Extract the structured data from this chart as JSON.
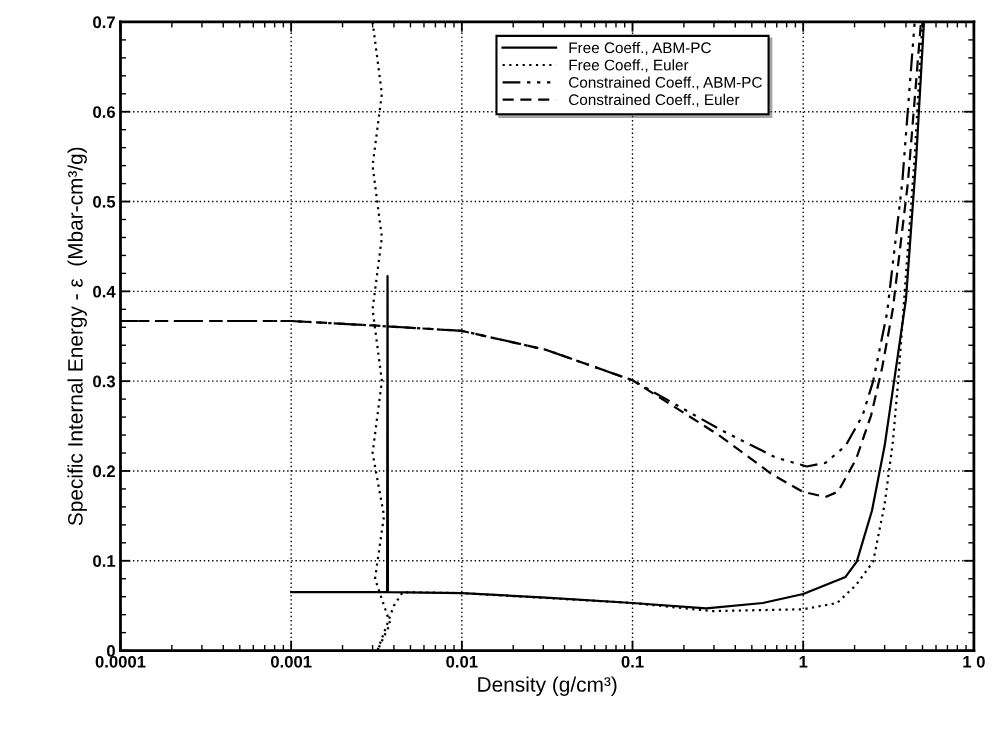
{
  "chart_data": {
    "type": "line",
    "xlabel": "Density (g/cm³)",
    "ylabel": "Specific Internal Energy - ε  (Mbar-cm³/g)",
    "log": "x",
    "xlim": [
      0.0001,
      10
    ],
    "ylim": [
      0,
      0.7
    ],
    "xticks": [
      0.0001,
      0.001,
      0.01,
      0.1,
      1,
      {
        "value": 10,
        "label": "1 0"
      }
    ],
    "yticks": [
      0,
      0.1,
      0.2,
      0.3,
      0.4,
      0.5,
      0.6,
      0.7
    ],
    "grid": true,
    "legend": "top",
    "marker": "none",
    "series": [
      {
        "name": "Free Coeff., ABM-PC",
        "color": "#000000",
        "line_style": "solid",
        "x": [
          0.001,
          0.0036,
          0.00365,
          0.00367,
          0.00369,
          0.01,
          0.031,
          0.1,
          0.27,
          0.58,
          1.0,
          1.77,
          2.06,
          2.53,
          3.0,
          3.5,
          4.0,
          4.6,
          5.1
        ],
        "values": [
          0.065,
          0.065,
          0.065,
          0.417,
          0.065,
          0.064,
          0.059,
          0.053,
          0.047,
          0.053,
          0.063,
          0.082,
          0.099,
          0.156,
          0.228,
          0.315,
          0.391,
          0.55,
          0.7
        ]
      },
      {
        "name": "Free Coeff., Euler",
        "color": "#000000",
        "line_style": "dotted",
        "x": [
          0.003,
          0.0034,
          0.003,
          0.0034,
          0.003,
          0.0034,
          0.003,
          0.0035,
          0.0031,
          0.0038,
          0.0032,
          0.004,
          0.0045,
          0.01,
          0.1,
          0.29,
          1.0,
          1.58,
          2.04,
          2.57,
          3.0,
          3.35,
          3.6,
          3.9,
          4.5,
          5.0
        ],
        "values": [
          0.7,
          0.62,
          0.54,
          0.46,
          0.38,
          0.3,
          0.22,
          0.15,
          0.08,
          0.03,
          0.0,
          0.05,
          0.065,
          0.064,
          0.053,
          0.044,
          0.046,
          0.053,
          0.073,
          0.099,
          0.163,
          0.232,
          0.3,
          0.39,
          0.55,
          0.7
        ]
      },
      {
        "name": "Constrained Coeff., ABM-PC",
        "color": "#000000",
        "line_style": "dashdotdot",
        "x": [
          0.0001,
          0.001,
          0.003,
          0.01,
          0.031,
          0.1,
          0.32,
          0.69,
          1.05,
          1.35,
          1.77,
          2.23,
          2.57,
          3.1,
          3.8,
          4.5
        ],
        "values": [
          0.367,
          0.367,
          0.362,
          0.356,
          0.335,
          0.301,
          0.247,
          0.215,
          0.205,
          0.209,
          0.228,
          0.262,
          0.3,
          0.376,
          0.52,
          0.7
        ]
      },
      {
        "name": "Constrained Coeff., Euler",
        "color": "#000000",
        "line_style": "dashed",
        "x": [
          0.0001,
          0.001,
          0.003,
          0.01,
          0.031,
          0.1,
          0.32,
          0.66,
          0.99,
          1.35,
          1.6,
          2.04,
          2.5,
          2.9,
          3.35,
          4.1,
          4.9
        ],
        "values": [
          0.367,
          0.367,
          0.362,
          0.356,
          0.335,
          0.301,
          0.24,
          0.196,
          0.177,
          0.171,
          0.177,
          0.213,
          0.262,
          0.315,
          0.38,
          0.52,
          0.7
        ]
      }
    ]
  }
}
